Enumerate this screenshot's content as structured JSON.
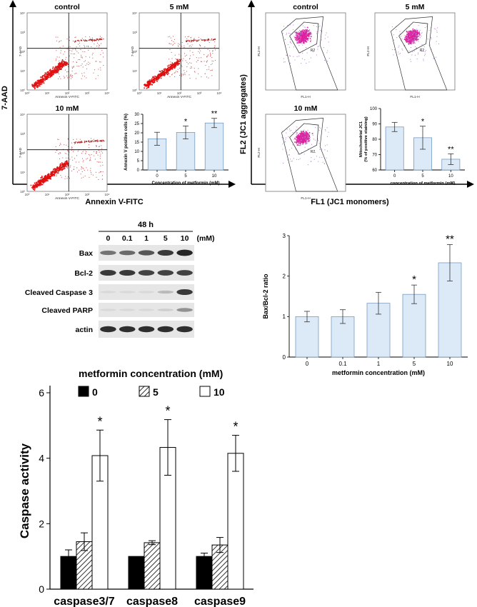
{
  "flow_annexin": {
    "y_axis_label": "7-AAD",
    "x_axis_label": "Annexin V-FITC",
    "plots": [
      {
        "title": "control",
        "xlab": "Annexin V-FITC",
        "ylab": "7-AAD"
      },
      {
        "title": "5 mM",
        "xlab": "Annexin V-FITC",
        "ylab": "7-AAD"
      },
      {
        "title": "10 mM",
        "xlab": "Annexin V-FITC",
        "ylab": "7-AAD"
      }
    ],
    "decade_labels": [
      "10⁰",
      "10¹",
      "10²",
      "10³",
      "10⁴"
    ]
  },
  "flow_jc1": {
    "y_axis_label": "FL2 (JC1 aggregates)",
    "x_axis_label": "FL1 (JC1 monomers)",
    "plots": [
      {
        "title": "control",
        "xlab": "FL1-H",
        "ylab": "FL2-H",
        "gate": "R2"
      },
      {
        "title": "5 mM",
        "xlab": "FL1-H",
        "ylab": "FL2-H",
        "gate": "R2"
      },
      {
        "title": "10 mM",
        "xlab": "FL1-H",
        "ylab": "FL2-H",
        "gate": "R2"
      }
    ]
  },
  "western_blot": {
    "time_label": "48 h",
    "unit_label": "(mM)",
    "concentrations": [
      "0",
      "0.1",
      "1",
      "5",
      "10"
    ],
    "lanes": [
      {
        "name": "Bax",
        "intensity": [
          0.55,
          0.6,
          0.7,
          0.85,
          0.95
        ]
      },
      {
        "name": "Bcl-2",
        "intensity": [
          0.85,
          0.85,
          0.8,
          0.8,
          0.8
        ]
      },
      {
        "name": "Cleaved Caspase 3",
        "intensity": [
          0.05,
          0.05,
          0.05,
          0.2,
          0.85
        ]
      },
      {
        "name": "Cleaved PARP",
        "intensity": [
          0.05,
          0.05,
          0.05,
          0.1,
          0.4
        ]
      },
      {
        "name": "actin",
        "intensity": [
          0.9,
          0.9,
          0.9,
          0.9,
          0.9
        ]
      }
    ]
  },
  "chart_data": [
    {
      "type": "bar",
      "categories": [
        "0",
        "5",
        "10"
      ],
      "values": [
        16.8,
        20.2,
        25.3
      ],
      "errors": [
        3.5,
        3.5,
        2.5
      ],
      "significance": [
        "",
        "*",
        "**"
      ],
      "xlabel": "Concentration of metformin (mM)",
      "ylabel": "Annexin V positive cells (%)",
      "ylim": [
        0,
        30
      ],
      "yticks": [
        0,
        5,
        10,
        15,
        20,
        25,
        30
      ],
      "bar_color": "#dce9f7"
    },
    {
      "type": "bar",
      "categories": [
        "0",
        "5",
        "10"
      ],
      "values": [
        88.0,
        81.0,
        67.0
      ],
      "errors": [
        3.0,
        7.5,
        3.5
      ],
      "significance": [
        "",
        "*",
        "**"
      ],
      "xlabel": "concentration of metformin (mM)",
      "ylabel": "Mitochondrial JC1 (% of positive staining)",
      "ylim": [
        60,
        100
      ],
      "yticks": [
        60,
        70,
        80,
        90,
        100
      ],
      "bar_color": "#dce9f7"
    },
    {
      "type": "bar",
      "categories": [
        "0",
        "0.1",
        "1",
        "5",
        "10"
      ],
      "values": [
        1.0,
        1.0,
        1.33,
        1.55,
        2.33
      ],
      "errors": [
        0.13,
        0.17,
        0.27,
        0.23,
        0.45
      ],
      "significance": [
        "",
        "",
        "",
        "*",
        "**"
      ],
      "xlabel": "metformin concentration (mM)",
      "ylabel": "Bax/Bcl-2 ratio",
      "ylim": [
        0,
        3
      ],
      "yticks": [
        0,
        1,
        2,
        3
      ],
      "bar_color": "#dce9f7"
    },
    {
      "type": "bar",
      "legend_title": "metformin concentration (mM)",
      "legend_position": "top",
      "categories": [
        "caspase3/7",
        "caspase8",
        "caspase9"
      ],
      "series": [
        {
          "name": "0",
          "values": [
            1.0,
            1.0,
            1.0
          ],
          "errors": [
            0.2,
            0.0,
            0.1
          ],
          "fill": "black"
        },
        {
          "name": "5",
          "values": [
            1.45,
            1.42,
            1.35
          ],
          "errors": [
            0.27,
            0.06,
            0.23
          ],
          "fill": "hatch"
        },
        {
          "name": "10",
          "values": [
            4.08,
            4.33,
            4.15
          ],
          "errors": [
            0.78,
            0.85,
            0.55
          ],
          "fill": "white"
        }
      ],
      "significance": [
        "*",
        "*",
        "*"
      ],
      "ylabel": "Caspase activity",
      "ylim": [
        0,
        6
      ],
      "yticks": [
        0,
        2,
        4,
        6
      ]
    }
  ]
}
